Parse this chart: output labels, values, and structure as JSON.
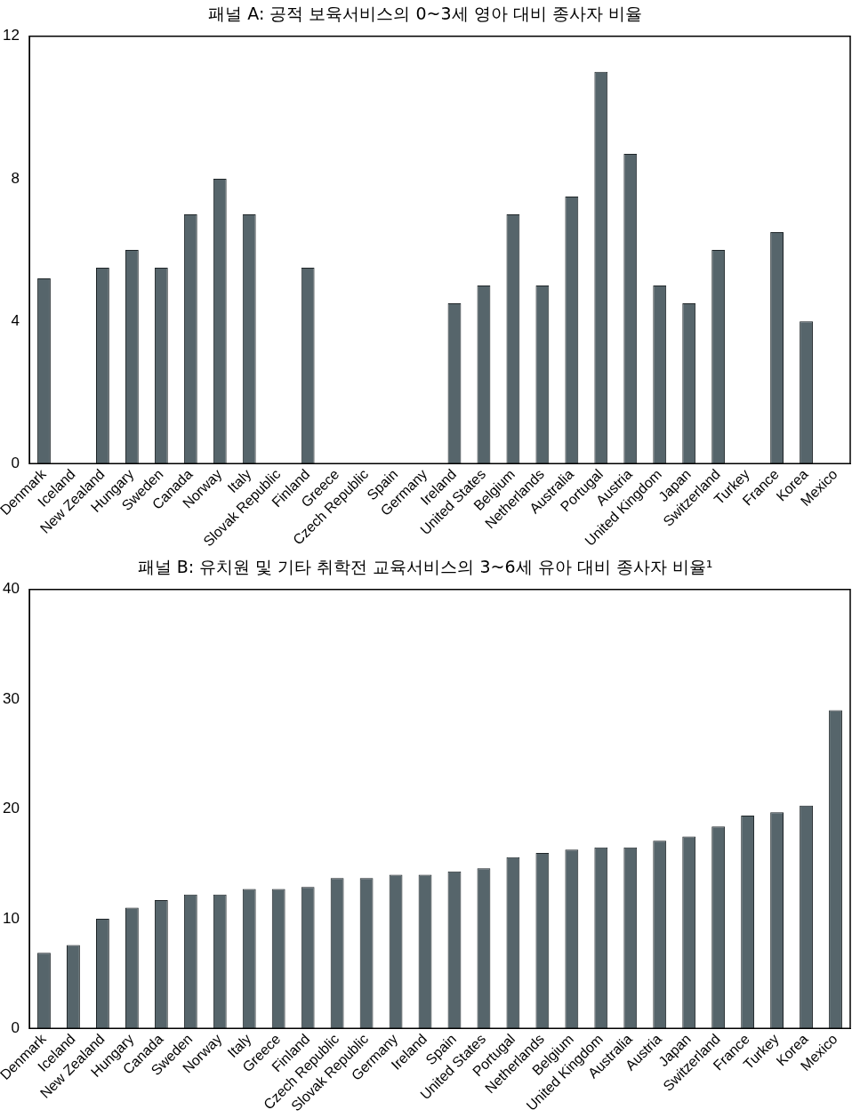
{
  "chart_data": [
    {
      "type": "bar",
      "title": "패널 A: 공적 보육서비스의 0~3세 영아 대비 종사자 비율",
      "categories": [
        "Denmark",
        "Iceland",
        "New Zealand",
        "Hungary",
        "Sweden",
        "Canada",
        "Norway",
        "Italy",
        "Slovak Republic",
        "Finland",
        "Greece",
        "Czech Republic",
        "Spain",
        "Germany",
        "Ireland",
        "United States",
        "Belgium",
        "Netherlands",
        "Australia",
        "Portugal",
        "Austria",
        "United Kingdom",
        "Japan",
        "Switzerland",
        "Turkey",
        "France",
        "Korea",
        "Mexico"
      ],
      "values": [
        5.2,
        null,
        5.5,
        6,
        5.5,
        7,
        8,
        7,
        null,
        5.5,
        null,
        null,
        null,
        null,
        4.5,
        5,
        7,
        5,
        7.5,
        11,
        8.7,
        5,
        4.5,
        6,
        null,
        6.5,
        4,
        null
      ],
      "color": "#56656b",
      "ylim": [
        0,
        12
      ],
      "yticks": [
        0,
        4,
        8,
        12
      ],
      "grid": false,
      "legend": false
    },
    {
      "type": "bar",
      "title": "패널 B: 유치원 및 기타 취학전 교육서비스의 3~6세 유아 대비 종사자 비율¹",
      "categories": [
        "Denmark",
        "Iceland",
        "New Zealand",
        "Hungary",
        "Canada",
        "Sweden",
        "Norway",
        "Italy",
        "Greece",
        "Finland",
        "Czech Republic",
        "Slovak Republic",
        "Germany",
        "Ireland",
        "Spain",
        "United States",
        "Portugal",
        "Netherlands",
        "Belgium",
        "United Kingdom",
        "Australia",
        "Austria",
        "Japan",
        "Switzerland",
        "France",
        "Turkey",
        "Korea",
        "Mexico"
      ],
      "values": [
        6.9,
        7.6,
        10,
        11,
        11.7,
        12.2,
        12.2,
        12.7,
        12.7,
        12.9,
        13.7,
        13.7,
        14,
        14,
        14.3,
        14.6,
        15.6,
        16,
        16.3,
        16.5,
        16.5,
        17.1,
        17.5,
        18.4,
        19.4,
        19.7,
        20.3,
        29
      ],
      "color": "#56656b",
      "ylim": [
        0,
        40
      ],
      "yticks": [
        0,
        10,
        20,
        30,
        40
      ],
      "grid": false,
      "legend": false
    }
  ]
}
